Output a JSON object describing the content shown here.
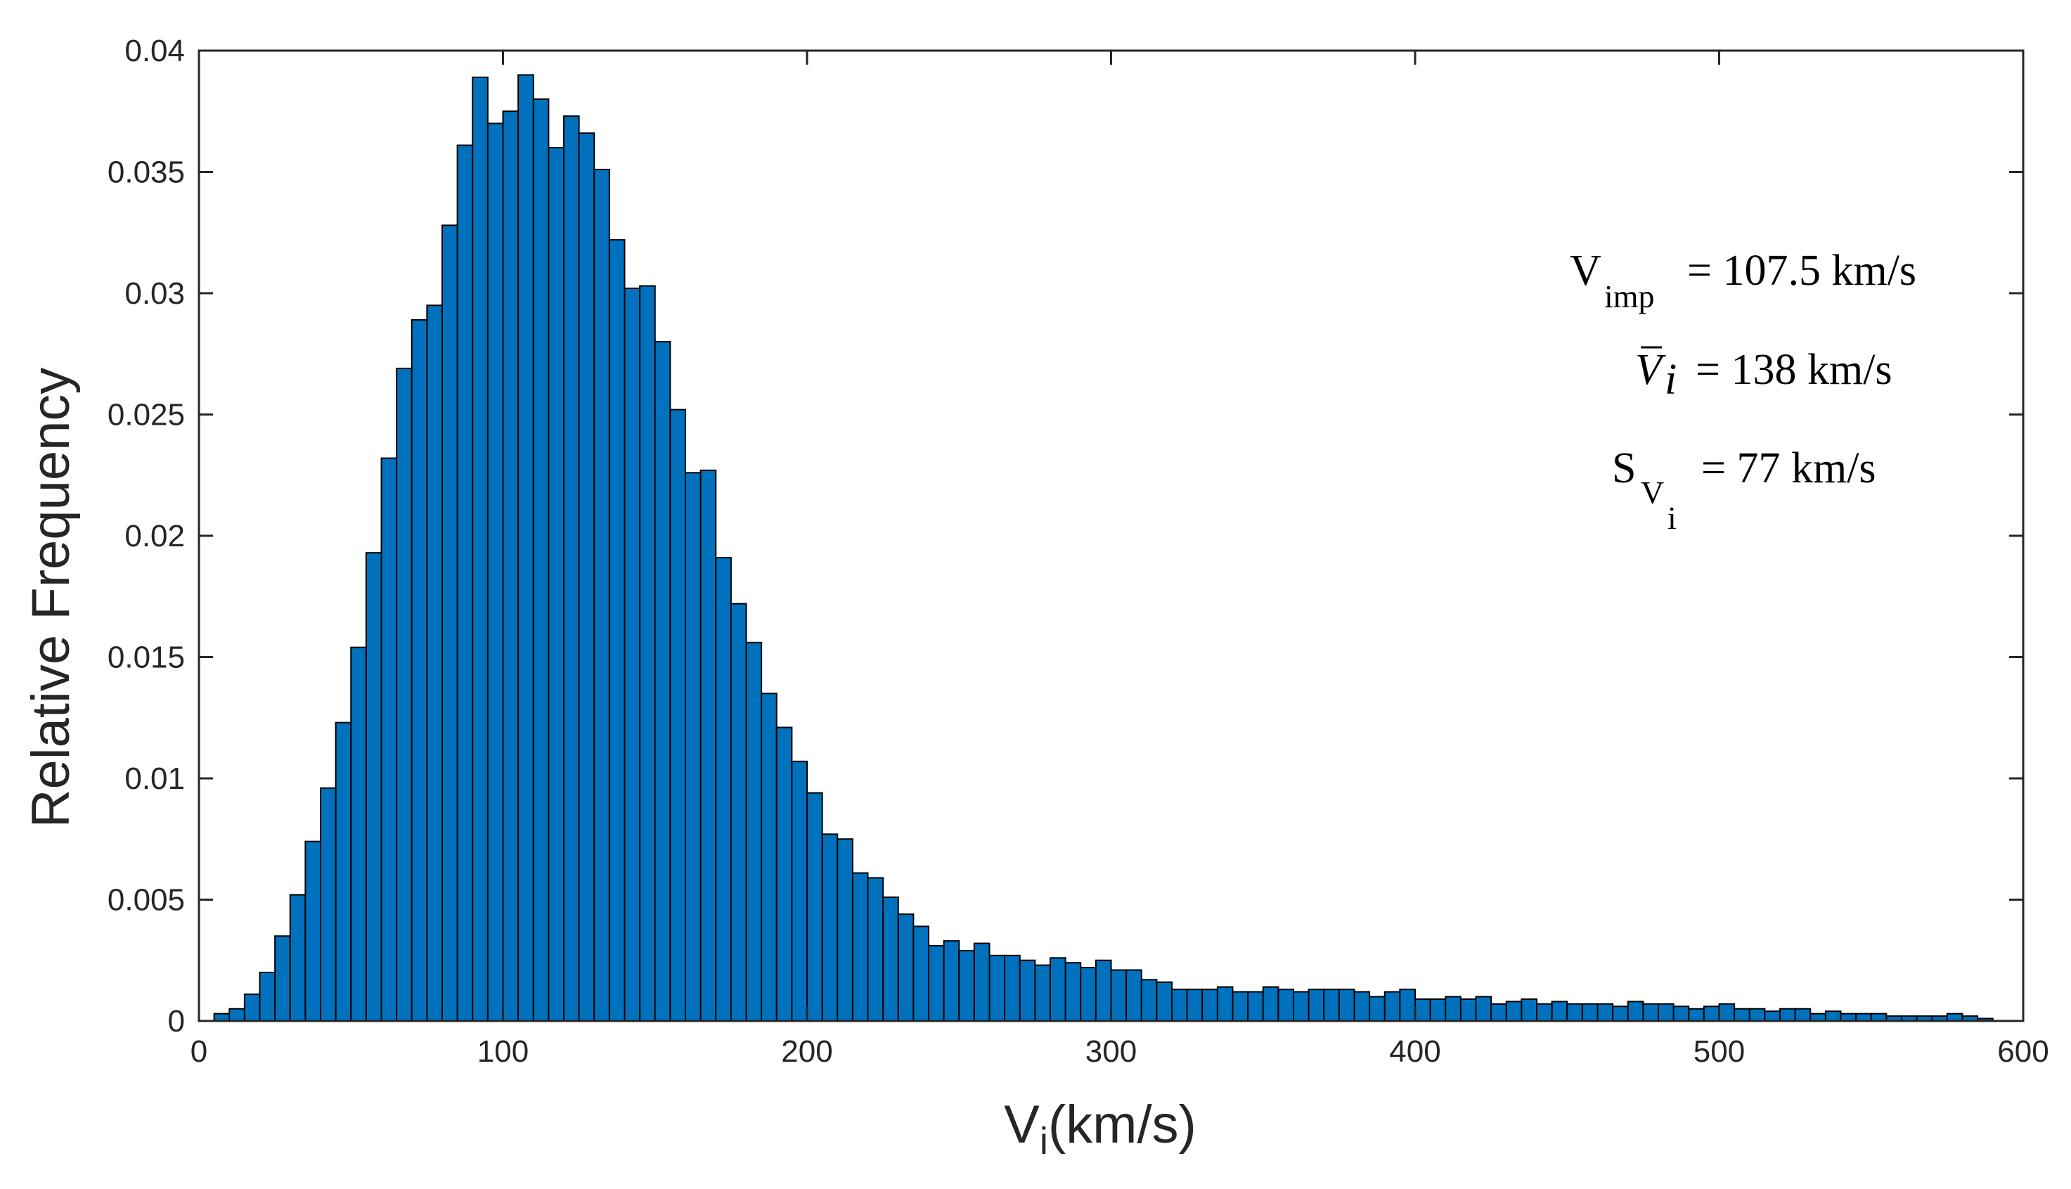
{
  "chart_data": {
    "type": "bar",
    "subtype": "histogram",
    "xlabel": {
      "main": "V",
      "sub": "i",
      "tail": "(km/s)"
    },
    "ylabel": "Relative Frequency",
    "xlim": [
      0,
      600
    ],
    "ylim": [
      0,
      0.04
    ],
    "x_ticks": [
      0,
      100,
      200,
      300,
      400,
      500,
      600
    ],
    "x_tick_labels": [
      "0",
      "100",
      "200",
      "300",
      "400",
      "500",
      "600"
    ],
    "y_ticks": [
      0,
      0.005,
      0.01,
      0.015,
      0.02,
      0.025,
      0.03,
      0.035,
      0.04
    ],
    "y_tick_labels": [
      "0",
      "0.005",
      "0.01",
      "0.015",
      "0.02",
      "0.025",
      "0.03",
      "0.035",
      "0.04"
    ],
    "grid": false,
    "box": true,
    "bar_color": "#0072BD",
    "edge_color": "#000000",
    "bin_width": 5,
    "bin_start": 5,
    "values": [
      0.0003,
      0.0005,
      0.0011,
      0.002,
      0.0035,
      0.0052,
      0.0074,
      0.0096,
      0.0123,
      0.0154,
      0.0193,
      0.0232,
      0.0269,
      0.0289,
      0.0295,
      0.0328,
      0.0361,
      0.0389,
      0.037,
      0.0375,
      0.039,
      0.038,
      0.036,
      0.0373,
      0.0366,
      0.0351,
      0.0322,
      0.0302,
      0.0303,
      0.028,
      0.0252,
      0.0226,
      0.0227,
      0.0191,
      0.0172,
      0.0156,
      0.0135,
      0.0121,
      0.0107,
      0.0094,
      0.0077,
      0.0075,
      0.0061,
      0.0059,
      0.0051,
      0.0044,
      0.0039,
      0.0031,
      0.0033,
      0.0029,
      0.0032,
      0.0027,
      0.0027,
      0.0025,
      0.0023,
      0.0026,
      0.0024,
      0.0022,
      0.0025,
      0.0021,
      0.0021,
      0.0017,
      0.0016,
      0.0013,
      0.0013,
      0.0013,
      0.0014,
      0.0012,
      0.0012,
      0.0014,
      0.0013,
      0.0012,
      0.0013,
      0.0013,
      0.0013,
      0.0012,
      0.001,
      0.0012,
      0.0013,
      0.0009,
      0.0009,
      0.001,
      0.0009,
      0.001,
      0.0007,
      0.0008,
      0.0009,
      0.0007,
      0.0008,
      0.0007,
      0.0007,
      0.0007,
      0.0006,
      0.0008,
      0.0007,
      0.0007,
      0.0006,
      0.0005,
      0.0006,
      0.0007,
      0.0005,
      0.0005,
      0.0004,
      0.0005,
      0.0005,
      0.0003,
      0.0004,
      0.0003,
      0.0003,
      0.0003,
      0.0002,
      0.0002,
      0.0002,
      0.0002,
      0.0003,
      0.0002,
      0.0001
    ],
    "annotations": [
      {
        "main": "V",
        "sub": "imp",
        "rest": "=  107.5 km/s"
      },
      {
        "main": "V",
        "sub": "i",
        "rest": "= 138 km/s",
        "overbar": true
      },
      {
        "main": "S",
        "sub": "V",
        "subsub": "i",
        "rest": "=  77 km/s"
      }
    ]
  }
}
